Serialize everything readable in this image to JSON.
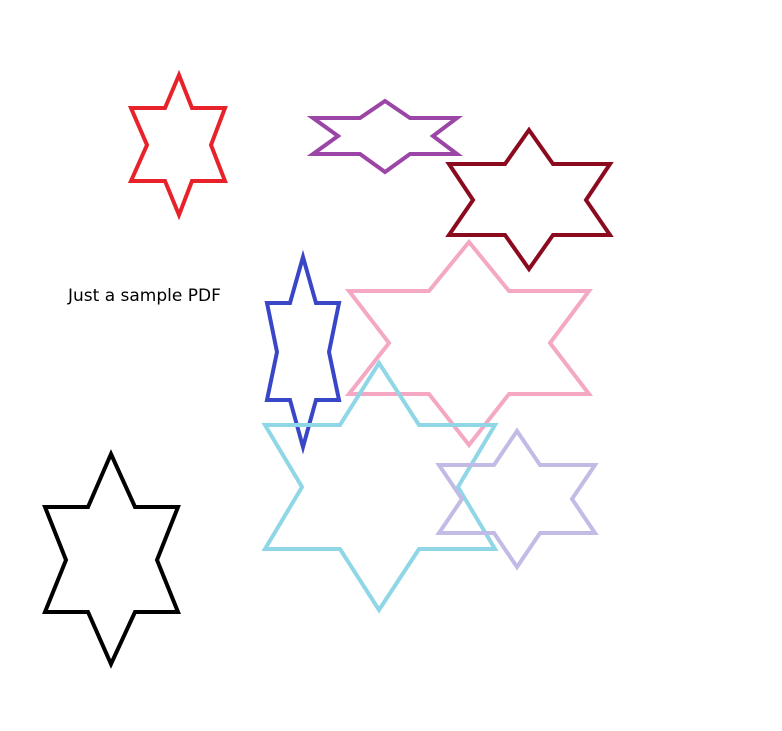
{
  "document": {
    "caption": "Just a sample PDF"
  },
  "shapes": [
    {
      "name": "star-red",
      "color": "#e8222a"
    },
    {
      "name": "star-purple",
      "color": "#9b46a6"
    },
    {
      "name": "star-dark-red",
      "color": "#8c0a1e"
    },
    {
      "name": "star-blue",
      "color": "#3a46c8"
    },
    {
      "name": "star-pink",
      "color": "#f4a8c4"
    },
    {
      "name": "star-light-blue",
      "color": "#8fd6e6"
    },
    {
      "name": "star-lavender",
      "color": "#c2bbe6"
    },
    {
      "name": "star-black",
      "color": "#000000"
    }
  ]
}
